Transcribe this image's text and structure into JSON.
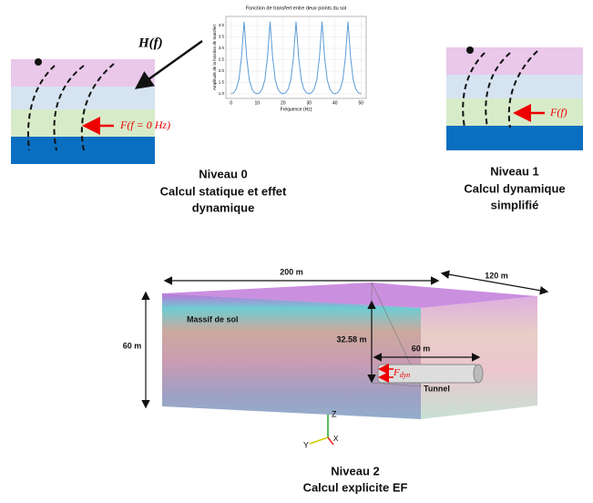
{
  "levels": [
    {
      "title": "Niveau 0",
      "lines": [
        "Calcul statique et effet",
        "dynamique"
      ],
      "force_label": "F(f = 0 Hz)"
    },
    {
      "title": "Niveau 1",
      "lines": [
        "Calcul dynamique",
        "simplifié"
      ],
      "force_label": "F(f)"
    },
    {
      "title": "Niveau 2",
      "lines": [
        "Calcul explicite EF"
      ]
    }
  ],
  "transfer_label": "H(f)",
  "inset_chart": {
    "type": "line",
    "title": "Fonction de transfert entre deux points du sol",
    "x_label": "Fréquence (Hz)",
    "y_label": "Amplitude de la fonction de transfert",
    "color": "#5b9bd5",
    "grid": true,
    "x": [
      0,
      1,
      2,
      3,
      4,
      5,
      6,
      7,
      8,
      9,
      10,
      11,
      12,
      13,
      14,
      15,
      16,
      17,
      18,
      19,
      20,
      21,
      22,
      23,
      24,
      25,
      26,
      27,
      28,
      29,
      30,
      31,
      32,
      33,
      34,
      35,
      36,
      37,
      38,
      39,
      40,
      41,
      42,
      43,
      44,
      45,
      46,
      47,
      48,
      49,
      50
    ],
    "values": [
      1.0,
      1.05,
      1.22,
      1.62,
      2.6,
      4.17,
      2.6,
      1.62,
      1.22,
      1.05,
      1.0,
      1.05,
      1.22,
      1.62,
      2.6,
      4.17,
      2.6,
      1.62,
      1.22,
      1.05,
      1.0,
      1.05,
      1.22,
      1.62,
      2.6,
      4.17,
      2.6,
      1.62,
      1.22,
      1.05,
      1.0,
      1.05,
      1.22,
      1.62,
      2.6,
      4.17,
      2.6,
      1.62,
      1.22,
      1.05,
      1.0,
      1.05,
      1.22,
      1.62,
      2.6,
      4.17,
      2.6,
      1.62,
      1.22,
      1.05,
      1.0
    ],
    "xlim": [
      -2,
      52
    ],
    "xticks": [
      0,
      10,
      20,
      30,
      40,
      50
    ],
    "ylim": [
      0.8,
      4.4
    ],
    "yticks": [
      {
        "value": 1,
        "label": "1.0"
      },
      {
        "value": 1.5,
        "label": "1.5"
      },
      {
        "value": 2,
        "label": "2.0"
      },
      {
        "value": 2.5,
        "label": "2.5"
      },
      {
        "value": 3,
        "label": "3.0"
      },
      {
        "value": 3.5,
        "label": "3.5"
      },
      {
        "value": 4,
        "label": "4.0"
      }
    ]
  },
  "model": {
    "length": "200 m",
    "width": "120 m",
    "height": "60 m",
    "depth": "32.58 m",
    "tunnel_length": "60 m",
    "soil": "Massif de sol",
    "tunnel": "Tunnel",
    "force_symbol": "F",
    "force_subscript": "dyn",
    "axes": [
      "Z",
      "Y",
      "X"
    ]
  }
}
